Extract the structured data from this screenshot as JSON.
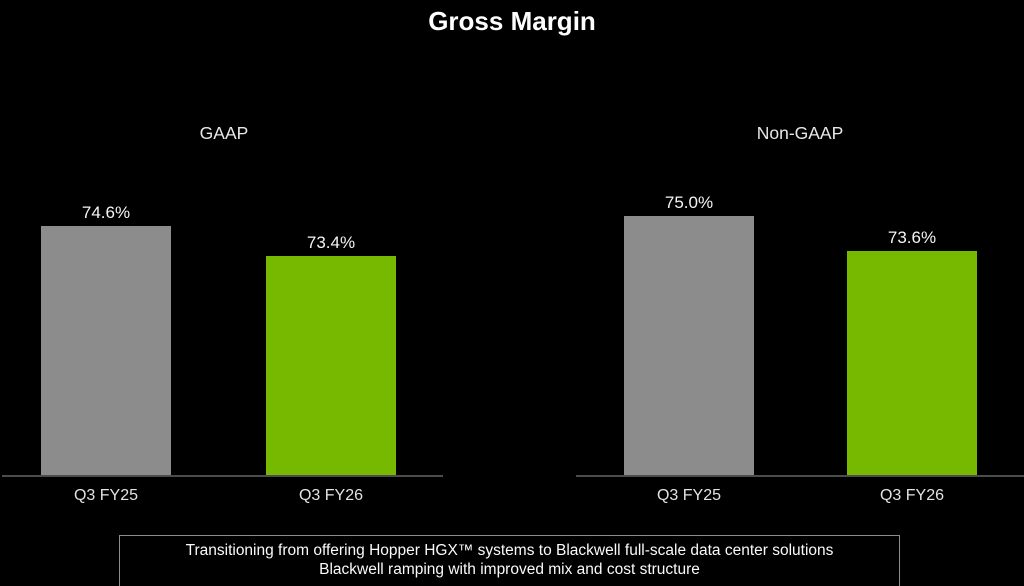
{
  "page": {
    "title": "Gross Margin",
    "background_color": "#000000",
    "text_color": "#FFFFFF"
  },
  "colors": {
    "prior_quarter_bar": "#8C8C8C",
    "current_quarter_bar": "#76B900",
    "axis_line": "#4C4C4C",
    "footnote_border": "#8C8C8C"
  },
  "chart_data": [
    {
      "type": "bar",
      "title": "GAAP",
      "categories": [
        "Q3 FY25",
        "Q3 FY26"
      ],
      "values": [
        74.6,
        73.4
      ],
      "labels": [
        "74.6%",
        "73.4%"
      ],
      "bar_colors": [
        "#8C8C8C",
        "#76B900"
      ],
      "ylabel": "",
      "xlabel": "",
      "ylim": [
        64.6,
        76.0
      ],
      "grid": false,
      "legend": "none"
    },
    {
      "type": "bar",
      "title": "Non-GAAP",
      "categories": [
        "Q3 FY25",
        "Q3 FY26"
      ],
      "values": [
        75.0,
        73.6
      ],
      "labels": [
        "75.0%",
        "73.6%"
      ],
      "bar_colors": [
        "#8C8C8C",
        "#76B900"
      ],
      "ylabel": "",
      "xlabel": "",
      "ylim": [
        64.6,
        76.0
      ],
      "grid": false,
      "legend": "none"
    }
  ],
  "footnote": {
    "line1": "Transitioning from offering Hopper HGX™ systems to Blackwell full-scale data center solutions",
    "line2": "Blackwell ramping with improved mix and cost structure"
  }
}
